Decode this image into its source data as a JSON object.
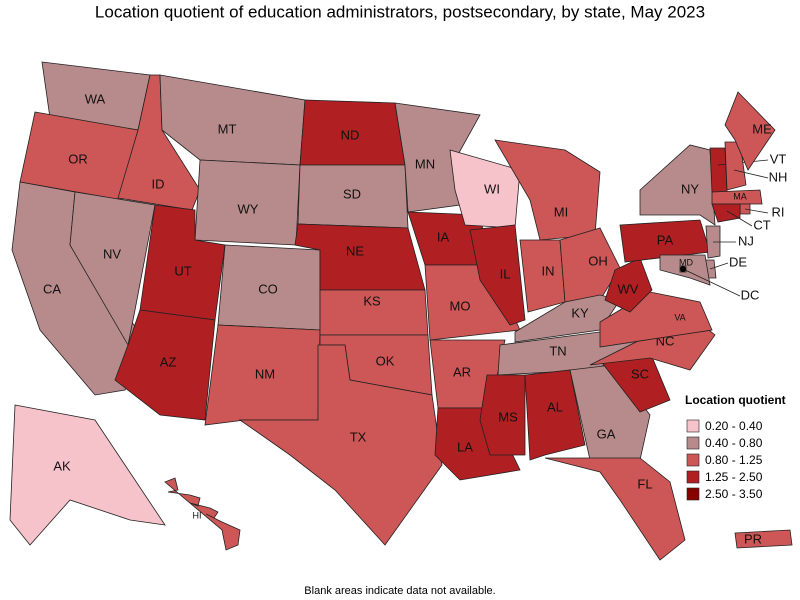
{
  "title": "Location quotient of education administrators, postsecondary, by state, May 2023",
  "note": "Blank areas indicate data not available.",
  "legend": {
    "title": "Location quotient",
    "items": [
      {
        "label": "0.20 - 0.40",
        "color": "#f7c3cb"
      },
      {
        "label": "0.40 - 0.80",
        "color": "#b78b8b"
      },
      {
        "label": "0.80 - 1.25",
        "color": "#cd5656"
      },
      {
        "label": "1.25 - 2.50",
        "color": "#b01f22"
      },
      {
        "label": "2.50 - 3.50",
        "color": "#870000"
      }
    ]
  },
  "states": [
    {
      "abbr": "WA",
      "category": "0.40 - 0.80"
    },
    {
      "abbr": "OR",
      "category": "0.80 - 1.25"
    },
    {
      "abbr": "CA",
      "category": "0.40 - 0.80"
    },
    {
      "abbr": "NV",
      "category": "0.40 - 0.80"
    },
    {
      "abbr": "ID",
      "category": "0.80 - 1.25"
    },
    {
      "abbr": "MT",
      "category": "0.40 - 0.80"
    },
    {
      "abbr": "WY",
      "category": "0.40 - 0.80"
    },
    {
      "abbr": "UT",
      "category": "1.25 - 2.50"
    },
    {
      "abbr": "AZ",
      "category": "1.25 - 2.50"
    },
    {
      "abbr": "CO",
      "category": "0.40 - 0.80"
    },
    {
      "abbr": "NM",
      "category": "0.80 - 1.25"
    },
    {
      "abbr": "ND",
      "category": "1.25 - 2.50"
    },
    {
      "abbr": "SD",
      "category": "0.40 - 0.80"
    },
    {
      "abbr": "NE",
      "category": "1.25 - 2.50"
    },
    {
      "abbr": "KS",
      "category": "0.80 - 1.25"
    },
    {
      "abbr": "OK",
      "category": "0.80 - 1.25"
    },
    {
      "abbr": "TX",
      "category": "0.80 - 1.25"
    },
    {
      "abbr": "MN",
      "category": "0.40 - 0.80"
    },
    {
      "abbr": "IA",
      "category": "1.25 - 2.50"
    },
    {
      "abbr": "MO",
      "category": "0.80 - 1.25"
    },
    {
      "abbr": "AR",
      "category": "0.80 - 1.25"
    },
    {
      "abbr": "LA",
      "category": "1.25 - 2.50"
    },
    {
      "abbr": "WI",
      "category": "0.20 - 0.40"
    },
    {
      "abbr": "IL",
      "category": "1.25 - 2.50"
    },
    {
      "abbr": "MI",
      "category": "0.80 - 1.25"
    },
    {
      "abbr": "IN",
      "category": "0.80 - 1.25"
    },
    {
      "abbr": "OH",
      "category": "0.80 - 1.25"
    },
    {
      "abbr": "KY",
      "category": "0.40 - 0.80"
    },
    {
      "abbr": "TN",
      "category": "0.40 - 0.80"
    },
    {
      "abbr": "MS",
      "category": "1.25 - 2.50"
    },
    {
      "abbr": "AL",
      "category": "1.25 - 2.50"
    },
    {
      "abbr": "GA",
      "category": "0.40 - 0.80"
    },
    {
      "abbr": "FL",
      "category": "0.80 - 1.25"
    },
    {
      "abbr": "SC",
      "category": "1.25 - 2.50"
    },
    {
      "abbr": "NC",
      "category": "0.80 - 1.25"
    },
    {
      "abbr": "VA",
      "category": "0.80 - 1.25"
    },
    {
      "abbr": "WV",
      "category": "1.25 - 2.50"
    },
    {
      "abbr": "PA",
      "category": "1.25 - 2.50"
    },
    {
      "abbr": "NY",
      "category": "0.40 - 0.80"
    },
    {
      "abbr": "VT",
      "category": "1.25 - 2.50"
    },
    {
      "abbr": "NH",
      "category": "0.80 - 1.25"
    },
    {
      "abbr": "ME",
      "category": "0.80 - 1.25"
    },
    {
      "abbr": "MA",
      "category": "0.80 - 1.25"
    },
    {
      "abbr": "RI",
      "category": "0.80 - 1.25"
    },
    {
      "abbr": "CT",
      "category": "1.25 - 2.50"
    },
    {
      "abbr": "NJ",
      "category": "0.40 - 0.80"
    },
    {
      "abbr": "DE",
      "category": "0.40 - 0.80"
    },
    {
      "abbr": "MD",
      "category": "0.40 - 0.80"
    },
    {
      "abbr": "DC",
      "category": "0.40 - 0.80"
    },
    {
      "abbr": "AK",
      "category": "0.20 - 0.40"
    },
    {
      "abbr": "HI",
      "category": "0.80 - 1.25"
    },
    {
      "abbr": "PR",
      "category": "0.80 - 1.25"
    }
  ]
}
